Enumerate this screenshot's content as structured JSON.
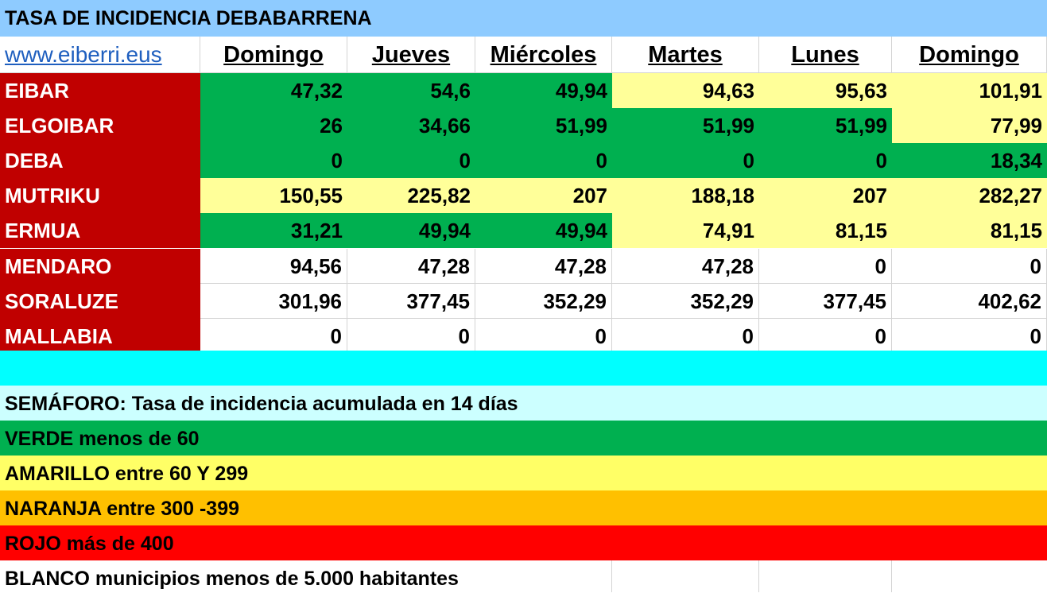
{
  "title": "TASA DE INCIDENCIA DEBABARRENA",
  "link_text": "www.eiberri.eus",
  "days": [
    "Domingo",
    "Jueves",
    "Miércoles",
    "Martes",
    "Lunes",
    "Domingo"
  ],
  "colors": {
    "title_bg": "#8ecbff",
    "name_bg": "#c00000",
    "green": "#00b050",
    "light_yellow": "#ffff99",
    "cyan": "#00ffff",
    "light_cyan": "#ccffff",
    "yellow": "#ffff66",
    "orange": "#ffc000",
    "red": "#ff0000"
  },
  "rows": [
    {
      "name": "EIBAR",
      "values": [
        "47,32",
        "54,6",
        "49,94",
        "94,63",
        "95,63",
        "101,91"
      ],
      "status": [
        "green",
        "green",
        "green",
        "yellow",
        "yellow",
        "yellow"
      ]
    },
    {
      "name": "ELGOIBAR",
      "values": [
        "26",
        "34,66",
        "51,99",
        "51,99",
        "51,99",
        "77,99"
      ],
      "status": [
        "green",
        "green",
        "green",
        "green",
        "green",
        "yellow"
      ]
    },
    {
      "name": "DEBA",
      "values": [
        "0",
        "0",
        "0",
        "0",
        "0",
        "18,34"
      ],
      "status": [
        "green",
        "green",
        "green",
        "green",
        "green",
        "green"
      ]
    },
    {
      "name": "MUTRIKU",
      "values": [
        "150,55",
        "225,82",
        "207",
        "188,18",
        "207",
        "282,27"
      ],
      "status": [
        "yellow",
        "yellow",
        "yellow",
        "yellow",
        "yellow",
        "yellow"
      ]
    },
    {
      "name": "ERMUA",
      "values": [
        "31,21",
        "49,94",
        "49,94",
        "74,91",
        "81,15",
        "81,15"
      ],
      "status": [
        "green",
        "green",
        "green",
        "yellow",
        "yellow",
        "yellow"
      ]
    },
    {
      "name": "MENDARO",
      "values": [
        "94,56",
        "47,28",
        "47,28",
        "47,28",
        "0",
        "0"
      ],
      "status": [
        "white",
        "white",
        "white",
        "white",
        "white",
        "white"
      ]
    },
    {
      "name": "SORALUZE",
      "values": [
        "301,96",
        "377,45",
        "352,29",
        "352,29",
        "377,45",
        "402,62"
      ],
      "status": [
        "white",
        "white",
        "white",
        "white",
        "white",
        "white"
      ]
    },
    {
      "name": "MALLABIA",
      "values": [
        "0",
        "0",
        "0",
        "0",
        "0",
        "0"
      ],
      "status": [
        "white",
        "white",
        "white",
        "white",
        "white",
        "white"
      ]
    }
  ],
  "legend": {
    "heading": "SEMÁFORO:  Tasa de incidencia acumulada en 14 días",
    "items": [
      {
        "text": "VERDE menos de 60",
        "color": "#00b050"
      },
      {
        "text": "AMARILLO entre 60 Y 299",
        "color": "#ffff66"
      },
      {
        "text": "NARANJA entre 300 -399",
        "color": "#ffc000"
      },
      {
        "text": "ROJO más de 400",
        "color": "#ff0000"
      },
      {
        "text": "BLANCO municipios menos de 5.000 habitantes",
        "color": "#ffffff"
      }
    ]
  }
}
